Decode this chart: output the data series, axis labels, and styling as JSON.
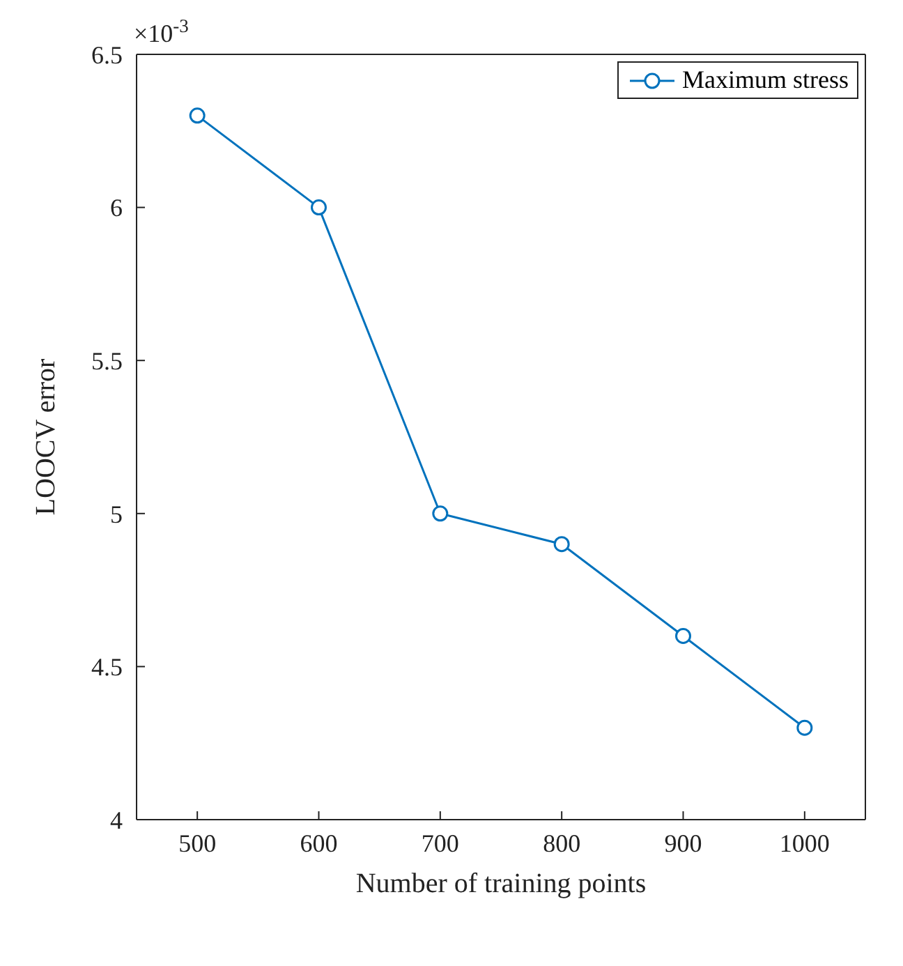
{
  "chart_data": {
    "type": "line",
    "xlabel": "Number of training points",
    "ylabel": "LOOCV error",
    "annotations": [
      "×10$^{-3}$"
    ],
    "x": [
      500,
      600,
      700,
      800,
      900,
      1000
    ],
    "series": [
      {
        "name": "Maximum stress",
        "color": "#0072bd",
        "values": [
          6.3,
          6.0,
          5.0,
          4.9,
          4.6,
          4.3
        ]
      }
    ],
    "xlim": [
      450,
      1050
    ],
    "xticks": [
      500,
      600,
      700,
      800,
      900,
      1000
    ],
    "ylim": [
      4,
      6.5
    ],
    "yticks": [
      4,
      4.5,
      5,
      5.5,
      6,
      6.5
    ],
    "grid": false,
    "legend": "top right",
    "marker": "circle",
    "line_style": "solid"
  }
}
